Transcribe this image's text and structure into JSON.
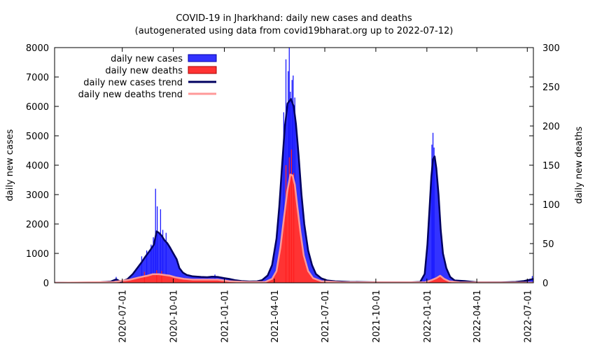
{
  "chart_data": {
    "type": "area",
    "title_line1": "COVID-19 in Jharkhand: daily new cases and deaths",
    "title_line2": "(autogenerated using data from covid19bharat.org up to 2022-07-12)",
    "ylabel_left": "daily new cases",
    "ylabel_right": "daily new deaths",
    "x_range": [
      "2020-03-01",
      "2022-07-12"
    ],
    "y_left_range": [
      0,
      8000
    ],
    "y_right_range": [
      0,
      300
    ],
    "y_left_ticks": [
      "0",
      "1000",
      "2000",
      "3000",
      "4000",
      "5000",
      "6000",
      "7000",
      "8000"
    ],
    "y_right_ticks": [
      "0",
      "50",
      "100",
      "150",
      "200",
      "250",
      "300"
    ],
    "x_ticks": [
      "2020-07-01",
      "2020-10-01",
      "2021-01-01",
      "2021-04-01",
      "2021-07-01",
      "2021-10-01",
      "2022-01-01",
      "2022-04-01",
      "2022-07-01"
    ],
    "colors": {
      "cases_fill": "#3333ff",
      "deaths_fill": "#ff3333",
      "cases_trend": "#000060",
      "deaths_trend": "#ff9999"
    },
    "legend": {
      "position": "top-left",
      "cases": "daily new cases",
      "deaths": "daily new deaths",
      "cases_trend": "daily new cases trend",
      "deaths_trend": "daily new deaths trend"
    },
    "cases_trend_points": [
      [
        "2020-03-01",
        0
      ],
      [
        "2020-05-15",
        10
      ],
      [
        "2020-06-10",
        40
      ],
      [
        "2020-06-20",
        120
      ],
      [
        "2020-06-28",
        40
      ],
      [
        "2020-07-10",
        120
      ],
      [
        "2020-07-20",
        300
      ],
      [
        "2020-07-28",
        500
      ],
      [
        "2020-08-05",
        700
      ],
      [
        "2020-08-12",
        900
      ],
      [
        "2020-08-20",
        1100
      ],
      [
        "2020-08-27",
        1300
      ],
      [
        "2020-09-01",
        1750
      ],
      [
        "2020-09-05",
        1700
      ],
      [
        "2020-09-10",
        1600
      ],
      [
        "2020-09-15",
        1450
      ],
      [
        "2020-09-20",
        1350
      ],
      [
        "2020-09-25",
        1200
      ],
      [
        "2020-10-01",
        1000
      ],
      [
        "2020-10-07",
        800
      ],
      [
        "2020-10-12",
        500
      ],
      [
        "2020-10-18",
        350
      ],
      [
        "2020-10-25",
        270
      ],
      [
        "2020-11-05",
        220
      ],
      [
        "2020-11-20",
        200
      ],
      [
        "2020-12-01",
        190
      ],
      [
        "2020-12-10",
        210
      ],
      [
        "2020-12-20",
        200
      ],
      [
        "2021-01-01",
        160
      ],
      [
        "2021-01-10",
        130
      ],
      [
        "2021-01-20",
        90
      ],
      [
        "2021-02-01",
        60
      ],
      [
        "2021-02-15",
        45
      ],
      [
        "2021-03-01",
        50
      ],
      [
        "2021-03-10",
        90
      ],
      [
        "2021-03-20",
        250
      ],
      [
        "2021-03-28",
        600
      ],
      [
        "2021-04-05",
        1500
      ],
      [
        "2021-04-10",
        2600
      ],
      [
        "2021-04-15",
        4000
      ],
      [
        "2021-04-20",
        5300
      ],
      [
        "2021-04-25",
        6100
      ],
      [
        "2021-05-01",
        6250
      ],
      [
        "2021-05-06",
        6000
      ],
      [
        "2021-05-10",
        5400
      ],
      [
        "2021-05-15",
        4300
      ],
      [
        "2021-05-20",
        3000
      ],
      [
        "2021-05-25",
        2000
      ],
      [
        "2021-06-01",
        1100
      ],
      [
        "2021-06-08",
        600
      ],
      [
        "2021-06-15",
        300
      ],
      [
        "2021-06-25",
        150
      ],
      [
        "2021-07-05",
        80
      ],
      [
        "2021-07-20",
        50
      ],
      [
        "2021-08-15",
        30
      ],
      [
        "2021-10-01",
        20
      ],
      [
        "2021-12-01",
        15
      ],
      [
        "2021-12-20",
        30
      ],
      [
        "2021-12-28",
        300
      ],
      [
        "2022-01-02",
        1300
      ],
      [
        "2022-01-06",
        2600
      ],
      [
        "2022-01-09",
        3600
      ],
      [
        "2022-01-12",
        4200
      ],
      [
        "2022-01-15",
        4300
      ],
      [
        "2022-01-18",
        3900
      ],
      [
        "2022-01-22",
        3000
      ],
      [
        "2022-01-26",
        1800
      ],
      [
        "2022-01-30",
        1000
      ],
      [
        "2022-02-05",
        500
      ],
      [
        "2022-02-12",
        200
      ],
      [
        "2022-02-20",
        80
      ],
      [
        "2022-03-10",
        60
      ],
      [
        "2022-04-01",
        20
      ],
      [
        "2022-05-15",
        15
      ],
      [
        "2022-06-10",
        30
      ],
      [
        "2022-06-25",
        60
      ],
      [
        "2022-07-12",
        130
      ]
    ],
    "deaths_trend_points": [
      [
        "2020-03-01",
        0
      ],
      [
        "2020-06-15",
        1
      ],
      [
        "2020-07-15",
        4
      ],
      [
        "2020-08-01",
        7
      ],
      [
        "2020-08-15",
        9
      ],
      [
        "2020-08-25",
        11
      ],
      [
        "2020-09-05",
        11
      ],
      [
        "2020-09-15",
        10
      ],
      [
        "2020-09-25",
        9
      ],
      [
        "2020-10-05",
        7
      ],
      [
        "2020-10-20",
        5
      ],
      [
        "2020-11-05",
        4
      ],
      [
        "2020-12-01",
        4
      ],
      [
        "2020-12-20",
        4
      ],
      [
        "2021-01-10",
        2
      ],
      [
        "2021-02-10",
        1
      ],
      [
        "2021-03-15",
        1
      ],
      [
        "2021-03-28",
        5
      ],
      [
        "2021-04-05",
        15
      ],
      [
        "2021-04-12",
        45
      ],
      [
        "2021-04-18",
        80
      ],
      [
        "2021-04-24",
        115
      ],
      [
        "2021-04-30",
        138
      ],
      [
        "2021-05-04",
        137
      ],
      [
        "2021-05-08",
        125
      ],
      [
        "2021-05-12",
        100
      ],
      [
        "2021-05-18",
        65
      ],
      [
        "2021-05-24",
        35
      ],
      [
        "2021-06-01",
        15
      ],
      [
        "2021-06-10",
        6
      ],
      [
        "2021-06-25",
        2
      ],
      [
        "2021-08-01",
        0.5
      ],
      [
        "2021-12-28",
        0.5
      ],
      [
        "2022-01-08",
        3
      ],
      [
        "2022-01-18",
        6
      ],
      [
        "2022-01-25",
        9
      ],
      [
        "2022-02-01",
        5
      ],
      [
        "2022-02-10",
        2
      ],
      [
        "2022-03-01",
        0.5
      ],
      [
        "2022-07-12",
        0.3
      ]
    ],
    "case_spikes": [
      [
        "2020-06-20",
        200
      ],
      [
        "2020-08-05",
        900
      ],
      [
        "2020-08-14",
        1100
      ],
      [
        "2020-08-22",
        1300
      ],
      [
        "2020-08-26",
        1550
      ],
      [
        "2020-08-30",
        3200
      ],
      [
        "2020-09-02",
        2600
      ],
      [
        "2020-09-08",
        2500
      ],
      [
        "2020-09-12",
        1800
      ],
      [
        "2020-09-18",
        1700
      ],
      [
        "2020-12-15",
        280
      ],
      [
        "2021-04-18",
        5800
      ],
      [
        "2021-04-22",
        7600
      ],
      [
        "2021-04-26",
        7200
      ],
      [
        "2021-04-28",
        8000
      ],
      [
        "2021-04-30",
        6500
      ],
      [
        "2021-05-03",
        6900
      ],
      [
        "2021-05-05",
        7050
      ],
      [
        "2021-05-08",
        6300
      ],
      [
        "2022-01-10",
        4700
      ],
      [
        "2022-01-12",
        5100
      ],
      [
        "2022-01-14",
        4600
      ],
      [
        "2022-07-10",
        230
      ]
    ],
    "death_spikes": [
      [
        "2020-08-10",
        14
      ],
      [
        "2020-09-01",
        16
      ],
      [
        "2020-09-10",
        15
      ],
      [
        "2021-04-22",
        150
      ],
      [
        "2021-04-28",
        160
      ],
      [
        "2021-05-02",
        170
      ],
      [
        "2021-05-06",
        140
      ]
    ]
  }
}
